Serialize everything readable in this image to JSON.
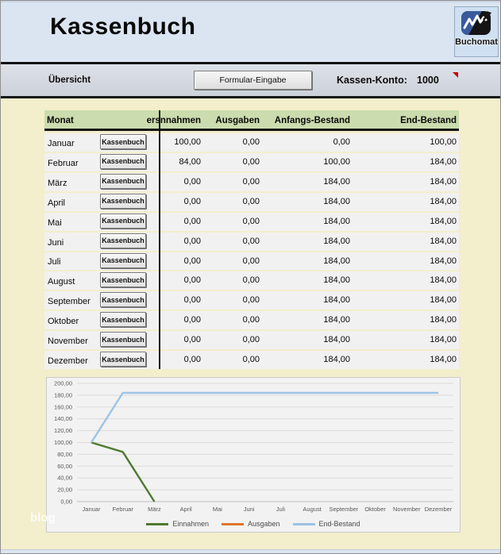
{
  "window": {
    "title": "Kassenbuch",
    "logo_label": "Buchomat"
  },
  "toolbar": {
    "overview_label": "Übersicht",
    "form_button_label": "Formular-Eingabe",
    "account_label": "Kassen-Konto:",
    "account_value": "1000"
  },
  "table": {
    "headers": {
      "month": "Monat",
      "einnahmen": "ersnnahmen",
      "ausgaben": "Ausgaben",
      "anfang": "Anfangs-Bestand",
      "end": "End-Bestand"
    },
    "row_button_label": "Kassenbuch",
    "rows": [
      {
        "month": "Januar",
        "einnahmen": "100,00",
        "ausgaben": "0,00",
        "anfang": "0,00",
        "end": "100,00"
      },
      {
        "month": "Februar",
        "einnahmen": "84,00",
        "ausgaben": "0,00",
        "anfang": "100,00",
        "end": "184,00"
      },
      {
        "month": "März",
        "einnahmen": "0,00",
        "ausgaben": "0,00",
        "anfang": "184,00",
        "end": "184,00"
      },
      {
        "month": "April",
        "einnahmen": "0,00",
        "ausgaben": "0,00",
        "anfang": "184,00",
        "end": "184,00"
      },
      {
        "month": "Mai",
        "einnahmen": "0,00",
        "ausgaben": "0,00",
        "anfang": "184,00",
        "end": "184,00"
      },
      {
        "month": "Juni",
        "einnahmen": "0,00",
        "ausgaben": "0,00",
        "anfang": "184,00",
        "end": "184,00"
      },
      {
        "month": "Juli",
        "einnahmen": "0,00",
        "ausgaben": "0,00",
        "anfang": "184,00",
        "end": "184,00"
      },
      {
        "month": "August",
        "einnahmen": "0,00",
        "ausgaben": "0,00",
        "anfang": "184,00",
        "end": "184,00"
      },
      {
        "month": "September",
        "einnahmen": "0,00",
        "ausgaben": "0,00",
        "anfang": "184,00",
        "end": "184,00"
      },
      {
        "month": "Oktober",
        "einnahmen": "0,00",
        "ausgaben": "0,00",
        "anfang": "184,00",
        "end": "184,00"
      },
      {
        "month": "November",
        "einnahmen": "0,00",
        "ausgaben": "0,00",
        "anfang": "184,00",
        "end": "184,00"
      },
      {
        "month": "Dezember",
        "einnahmen": "0,00",
        "ausgaben": "0,00",
        "anfang": "184,00",
        "end": "184,00"
      }
    ]
  },
  "watermark": "blog",
  "colors": {
    "header_bg": "#dbe5f1",
    "body_bg": "#f3eecb",
    "table_header_bg": "#cbdcae",
    "comment_marker": "#c80000",
    "einnahmen_line": "#4e7b2f",
    "ausgaben_line": "#e0762c",
    "endbestand_line": "#9dc3e6"
  },
  "chart_data": {
    "type": "line",
    "title": "",
    "xlabel": "",
    "ylabel": "",
    "categories": [
      "Januar",
      "Februar",
      "März",
      "April",
      "Mai",
      "Juni",
      "Juli",
      "August",
      "September",
      "Oktober",
      "November",
      "Dezember"
    ],
    "series": [
      {
        "name": "Einnahmen",
        "color": "#4e7b2f",
        "values": [
          100,
          84,
          0,
          null,
          null,
          null,
          null,
          null,
          null,
          null,
          null,
          null
        ]
      },
      {
        "name": "Ausgaben",
        "color": "#e0762c",
        "values": [
          null,
          null,
          null,
          null,
          null,
          null,
          null,
          null,
          null,
          null,
          null,
          null
        ]
      },
      {
        "name": "End-Bestand",
        "color": "#9dc3e6",
        "values": [
          100,
          184,
          184,
          184,
          184,
          184,
          184,
          184,
          184,
          184,
          184,
          184
        ]
      }
    ],
    "ylim": [
      0,
      200
    ],
    "y_step": 20,
    "y_tick_labels": [
      "0,00",
      "20,00",
      "40,00",
      "60,00",
      "80,00",
      "100,00",
      "120,00",
      "140,00",
      "160,00",
      "180,00",
      "200,00"
    ],
    "grid": true,
    "legend_position": "bottom"
  }
}
